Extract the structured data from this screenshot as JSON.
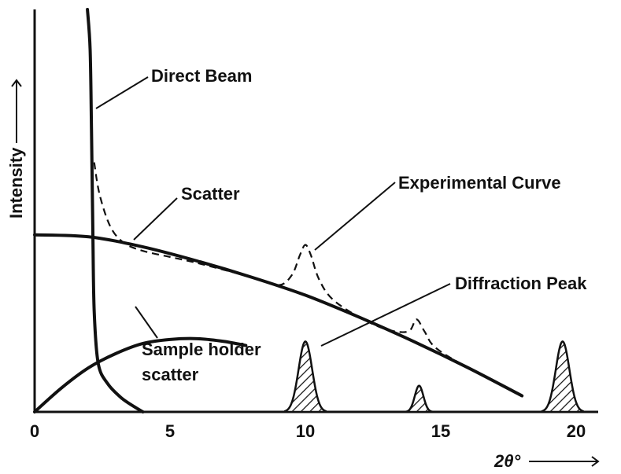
{
  "chart_data": {
    "type": "line",
    "xlabel": "2θ°",
    "ylabel": "Intensity",
    "x_ticks": [
      "0",
      "5",
      "10",
      "15",
      "20"
    ],
    "xlim": [
      0,
      20.5
    ],
    "ylim": [
      0,
      1
    ],
    "series": [
      {
        "name": "Direct Beam",
        "points": [
          [
            1.95,
            1.0
          ],
          [
            2.05,
            0.9
          ],
          [
            2.1,
            0.7
          ],
          [
            2.15,
            0.45
          ],
          [
            2.2,
            0.25
          ],
          [
            2.35,
            0.12
          ],
          [
            2.7,
            0.07
          ],
          [
            3.2,
            0.035
          ],
          [
            3.7,
            0.012
          ],
          [
            4.0,
            0.0
          ]
        ]
      },
      {
        "name": "Scatter",
        "points": [
          [
            0,
            0.44
          ],
          [
            2,
            0.435
          ],
          [
            4,
            0.41
          ],
          [
            6,
            0.375
          ],
          [
            8,
            0.335
          ],
          [
            10,
            0.29
          ],
          [
            12,
            0.235
          ],
          [
            14,
            0.175
          ],
          [
            16,
            0.11
          ],
          [
            18,
            0.04
          ]
        ]
      },
      {
        "name": "Sample holder scatter",
        "points": [
          [
            0,
            0.0
          ],
          [
            1,
            0.06
          ],
          [
            2,
            0.11
          ],
          [
            3,
            0.145
          ],
          [
            4,
            0.17
          ],
          [
            5,
            0.18
          ],
          [
            6,
            0.182
          ],
          [
            7,
            0.175
          ],
          [
            7.8,
            0.165
          ]
        ]
      },
      {
        "name": "Experimental Curve",
        "points": [
          [
            2.2,
            0.62
          ],
          [
            2.4,
            0.54
          ],
          [
            2.8,
            0.46
          ],
          [
            3.3,
            0.42
          ],
          [
            4,
            0.4
          ],
          [
            5,
            0.385
          ],
          [
            6,
            0.37
          ],
          [
            8,
            0.335
          ],
          [
            9,
            0.315
          ],
          [
            9.5,
            0.34
          ],
          [
            9.8,
            0.39
          ],
          [
            10,
            0.415
          ],
          [
            10.2,
            0.39
          ],
          [
            10.5,
            0.33
          ],
          [
            11,
            0.28
          ],
          [
            12,
            0.235
          ],
          [
            13,
            0.205
          ],
          [
            13.8,
            0.2
          ],
          [
            14.1,
            0.23
          ],
          [
            14.4,
            0.2
          ],
          [
            14.8,
            0.16
          ],
          [
            16,
            0.11
          ],
          [
            18,
            0.04
          ]
        ]
      }
    ],
    "peaks": [
      {
        "center": 10.0,
        "height": 0.175,
        "width": 0.55
      },
      {
        "center": 14.2,
        "height": 0.065,
        "width": 0.35
      },
      {
        "center": 19.5,
        "height": 0.175,
        "width": 0.55
      }
    ],
    "annotations": [
      "Direct Beam",
      "Scatter",
      "Experimental Curve",
      "Diffraction Peak",
      "Sample holder",
      "scatter"
    ]
  }
}
